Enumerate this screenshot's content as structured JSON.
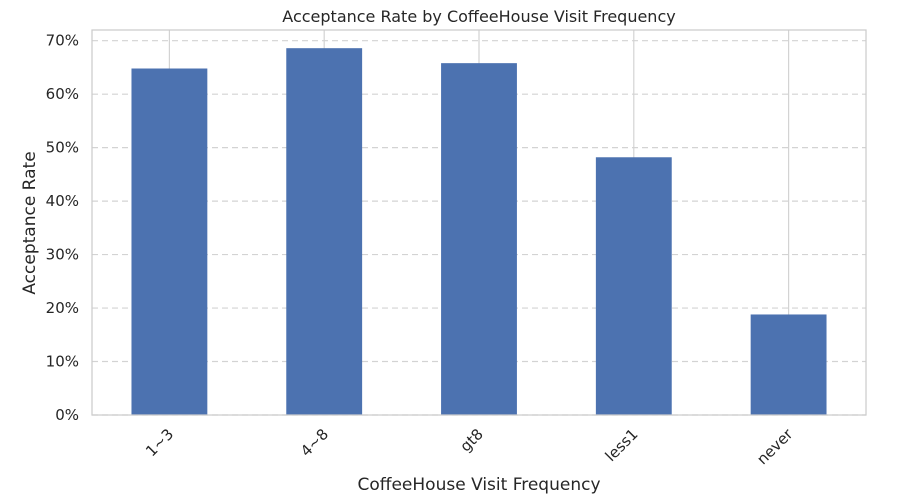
{
  "chart_data": {
    "type": "bar",
    "title": "Acceptance Rate by CoffeeHouse Visit Frequency",
    "xlabel": "CoffeeHouse Visit Frequency",
    "ylabel": "Acceptance Rate",
    "categories": [
      "1~3",
      "4~8",
      "gt8",
      "less1",
      "never"
    ],
    "values": [
      0.648,
      0.686,
      0.658,
      0.482,
      0.188
    ],
    "ylim": [
      0,
      0.72
    ],
    "yticks": [
      0,
      0.1,
      0.2,
      0.3,
      0.4,
      0.5,
      0.6,
      0.7
    ],
    "ytick_labels": [
      "0%",
      "10%",
      "20%",
      "30%",
      "40%",
      "50%",
      "60%",
      "70%"
    ],
    "grid": {
      "x": true,
      "y": true,
      "y_style": "dashed"
    },
    "legend": "none",
    "colors": {
      "bar": "#4c72b0",
      "grid": "#d3d3d3",
      "axes_edge": "#cccccc",
      "text": "#262626"
    }
  }
}
